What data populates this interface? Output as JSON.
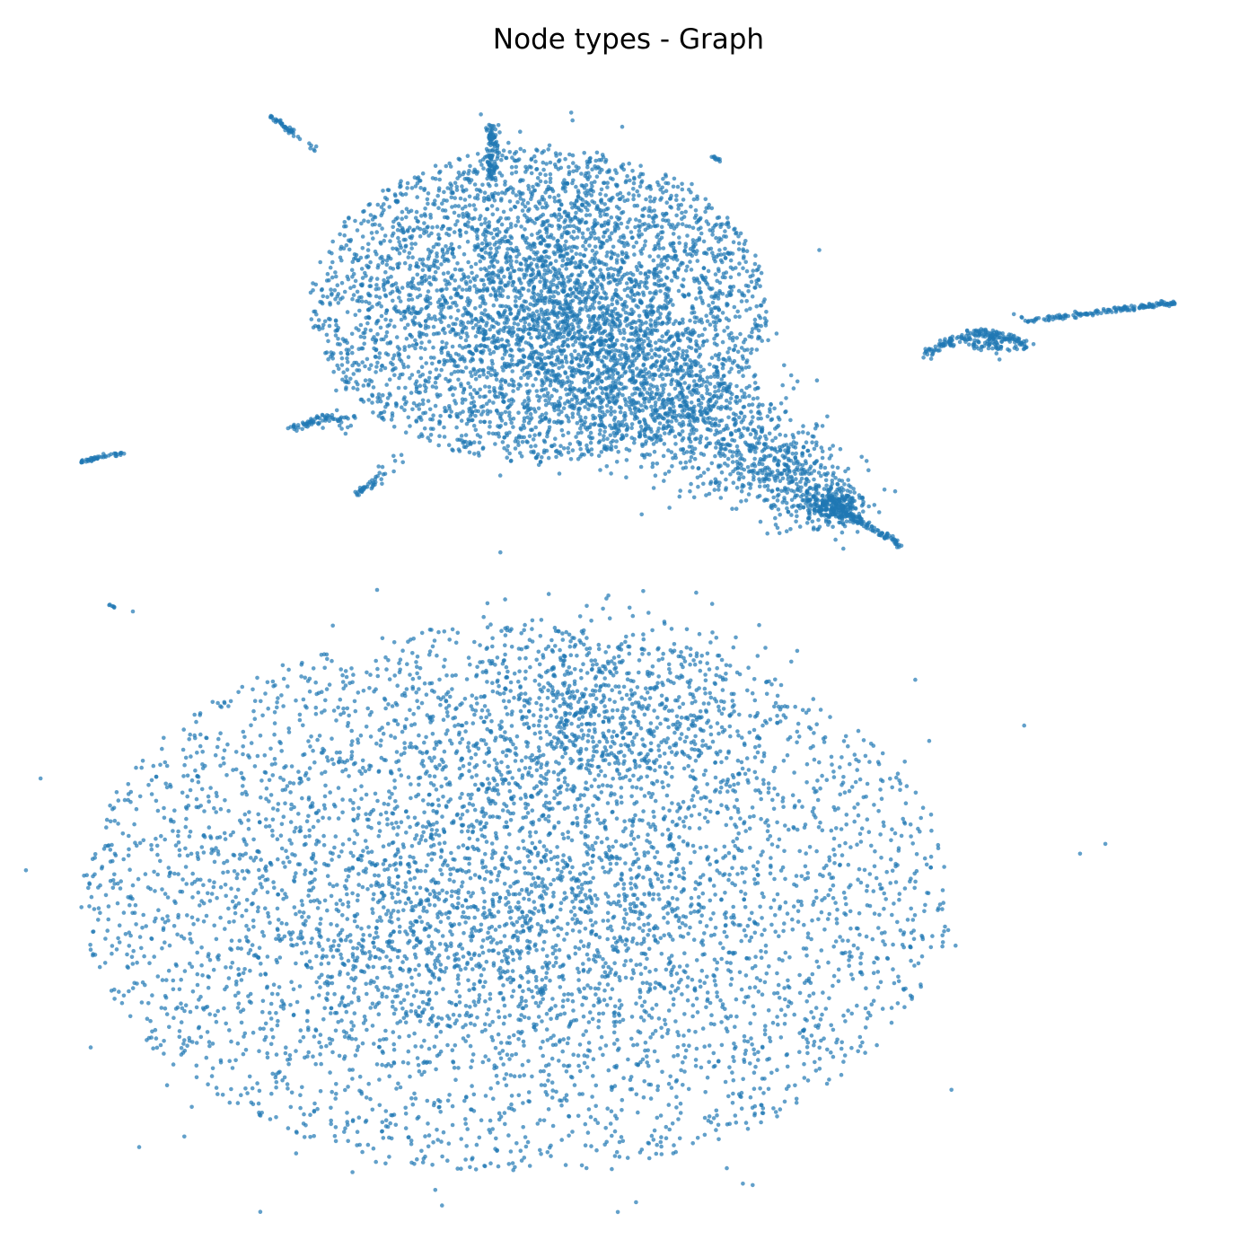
{
  "chart_data": {
    "type": "scatter",
    "title": "Node types - Graph",
    "xlabel": "",
    "ylabel": "",
    "axes_visible": false,
    "grid": false,
    "legend": "none",
    "colors": {
      "point": "#1f77b4",
      "background": "#ffffff"
    },
    "point_opacity": 0.7,
    "series": [
      {
        "values": []
      }
    ]
  }
}
